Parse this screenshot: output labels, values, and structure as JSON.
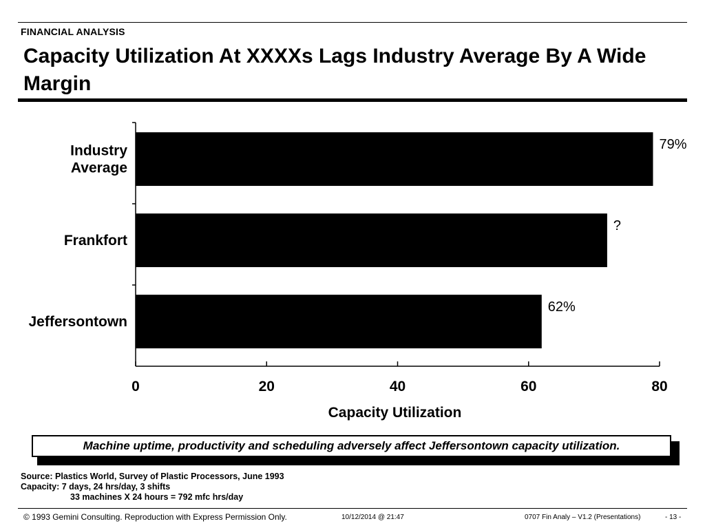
{
  "header": {
    "section": "FINANCIAL ANALYSIS",
    "title": "Capacity Utilization At XXXXs Lags Industry Average By A Wide Margin"
  },
  "chart_data": {
    "type": "bar",
    "orientation": "horizontal",
    "categories": [
      "Industry Average",
      "Frankfort",
      "Jeffersontown"
    ],
    "values": [
      79,
      72,
      62
    ],
    "data_labels": [
      "79%",
      "?",
      "62%"
    ],
    "xlabel": "Capacity Utilization",
    "ylabel": "",
    "xlim": [
      0,
      80
    ],
    "xticks": [
      0,
      20,
      40,
      60,
      80
    ],
    "grid": false,
    "bar_color": "#000000"
  },
  "callout": {
    "text": "Machine uptime, productivity and scheduling adversely affect Jeffersontown capacity utilization."
  },
  "notes": {
    "source": "Source:  Plastics World, Survey of Plastic Processors, June 1993",
    "capacity": "Capacity:  7 days, 24 hrs/day, 3 shifts",
    "calc": "33 machines X 24 hours = 792 mfc hrs/day"
  },
  "footer": {
    "copyright": "© 1993 Gemini Consulting. Reproduction with Express Permission Only.",
    "timestamp": "10/12/2014 @ 21:47",
    "doc": "0707 Fin Analy – V1.2 (Presentations)",
    "page": "- 13 -"
  }
}
